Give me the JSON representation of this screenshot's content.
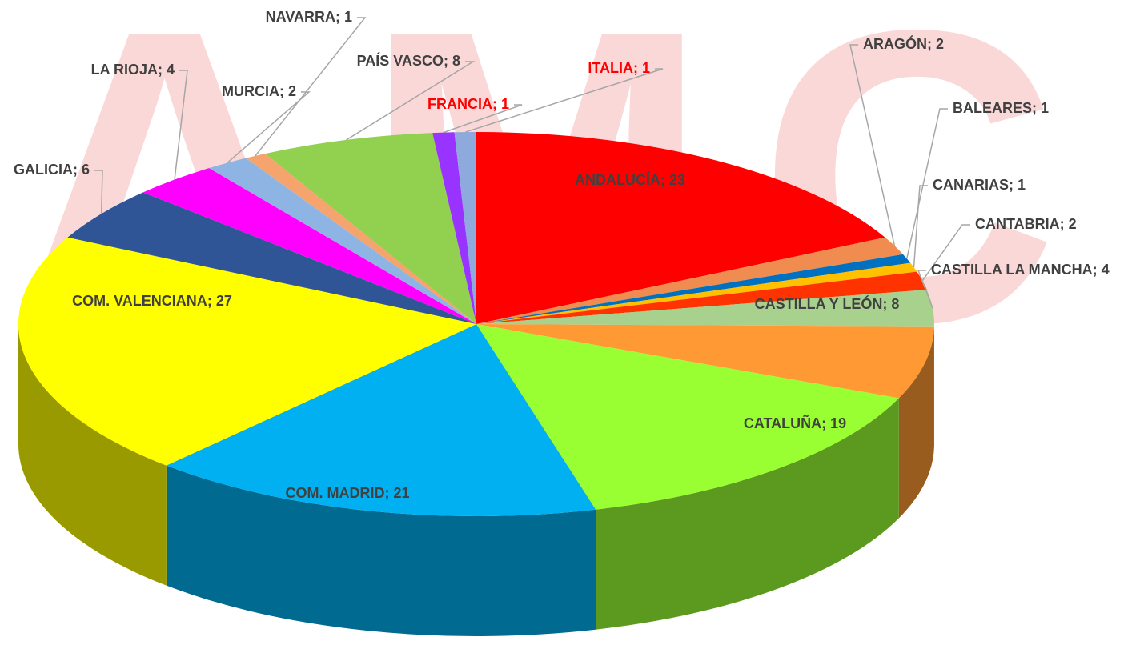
{
  "chart_data": {
    "type": "pie3d",
    "watermark": "AMC",
    "label_separator": "; ",
    "categories": [
      "ANDALUCÍA",
      "ARAGÓN",
      "BALEARES",
      "CANARIAS",
      "CANTABRIA",
      "CASTILLA LA MANCHA",
      "CASTILLA Y LEÓN",
      "CATALUÑA",
      "COM. MADRID",
      "COM. VALENCIANA",
      "GALICIA",
      "LA RIOJA",
      "MURCIA",
      "NAVARRA",
      "PAÍS VASCO",
      "FRANCIA",
      "ITALIA"
    ],
    "values": [
      23,
      2,
      1,
      1,
      2,
      4,
      8,
      19,
      21,
      27,
      6,
      4,
      2,
      1,
      8,
      1,
      1
    ],
    "colors": [
      "#ff0000",
      "#f08c50",
      "#0070c0",
      "#ffc000",
      "#ff3300",
      "#a9d18e",
      "#ff9933",
      "#99ff33",
      "#00b0f0",
      "#ffff00",
      "#2f5597",
      "#ff00ff",
      "#8eb4e3",
      "#f4a46c",
      "#92d050",
      "#9933ff",
      "#8ea9db"
    ],
    "label_colors": [
      "#404040",
      "#404040",
      "#404040",
      "#404040",
      "#404040",
      "#404040",
      "#404040",
      "#404040",
      "#404040",
      "#404040",
      "#404040",
      "#404040",
      "#404040",
      "#404040",
      "#404040",
      "#ff0000",
      "#ff0000"
    ]
  }
}
